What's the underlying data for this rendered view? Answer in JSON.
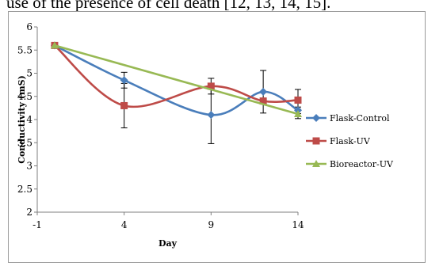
{
  "caption": "use of the presence of cell death [12, 13, 14, 15].",
  "chart_data": {
    "type": "line",
    "title": "",
    "xlabel": "Day",
    "ylabel": "Conductivity (mS)",
    "xlim": [
      -1,
      14
    ],
    "ylim": [
      2,
      6
    ],
    "xticks": [
      -1,
      4,
      9,
      14
    ],
    "yticks": [
      2,
      2.5,
      3,
      3.5,
      4,
      4.5,
      5,
      5.5,
      6
    ],
    "xtick_labels": [
      "-1",
      "4",
      "9",
      "14"
    ],
    "ytick_labels": [
      "2",
      "2.5",
      "3",
      "3.5",
      "4",
      "4.5",
      "5",
      "5.5",
      "6"
    ],
    "grid": false,
    "legend_position": "right",
    "series": [
      {
        "name": "Flask-Control",
        "color": "#4a7ebb",
        "marker": "diamond",
        "smooth": true,
        "x": [
          0,
          4,
          9,
          12,
          14
        ],
        "y": [
          5.6,
          4.85,
          4.1,
          4.6,
          4.2
        ],
        "err": [
          0,
          0.17,
          0.62,
          0.46,
          0.07
        ]
      },
      {
        "name": "Flask-UV",
        "color": "#be4b48",
        "marker": "square",
        "smooth": true,
        "x": [
          0,
          4,
          9,
          12,
          14
        ],
        "y": [
          5.6,
          4.3,
          4.72,
          4.4,
          4.42
        ],
        "err": [
          0,
          0.48,
          0.17,
          0,
          0.23
        ]
      },
      {
        "name": "Bioreactor-UV",
        "color": "#98b954",
        "marker": "triangle",
        "smooth": false,
        "x": [
          0,
          14
        ],
        "y": [
          5.6,
          4.12
        ],
        "err": [
          0,
          0.1
        ]
      }
    ]
  }
}
